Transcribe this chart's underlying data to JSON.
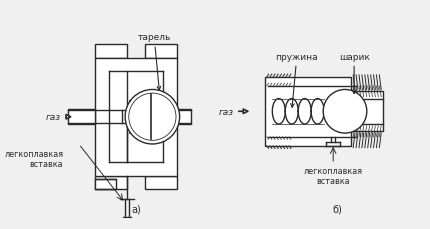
{
  "bg_color": "#f0f0f0",
  "line_color": "#2a2a2a",
  "lw": 1.0,
  "fig_w": 4.3,
  "fig_h": 2.3,
  "label_a": "а)",
  "label_b": "б)",
  "text_tarelj": "тарель",
  "text_pruzhina": "пружина",
  "text_sharik": "шарик",
  "text_gaz": "газ",
  "text_legko1": "легкоплавкая\nвставка",
  "text_legko2": "легкоплавкая\nвставка"
}
